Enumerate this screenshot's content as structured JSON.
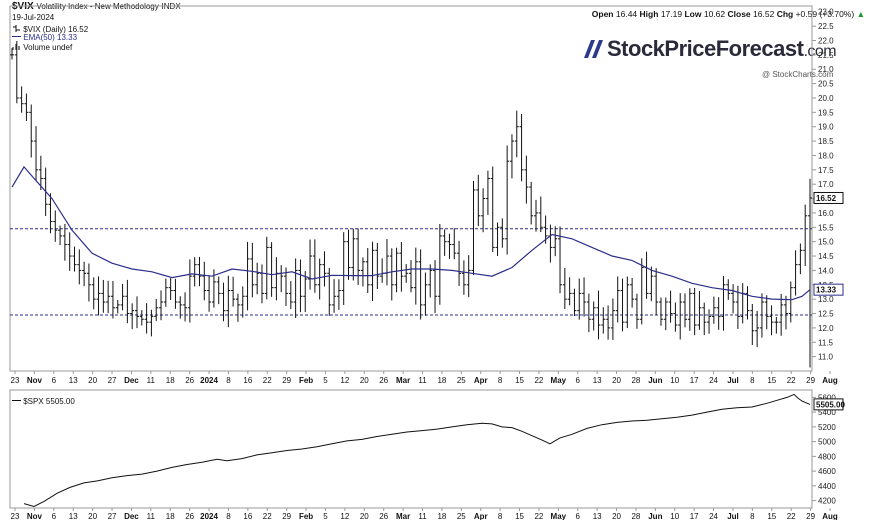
{
  "header": {
    "symbol": "$VIX",
    "name": "Volatility Index - New Methodology",
    "exchange": "INDX",
    "date": "19-Jul-2024",
    "ohlc": {
      "open_label": "Open",
      "open": "16.44",
      "high_label": "High",
      "high": "17.19",
      "low_label": "Low",
      "low": "10.62",
      "close_label": "Close",
      "close": "16.52",
      "chg_label": "Chg",
      "chg": "+0.59 (+3.70%)",
      "arrow": "▲"
    },
    "legend": [
      {
        "text": "$VIX (Daily) 16.52",
        "color": "#111111"
      },
      {
        "text": "EMA(50) 13.33",
        "color": "#2b2f8c"
      },
      {
        "text": "Volume undef",
        "color": "#111111"
      }
    ],
    "watermark": "@ StockCharts.com",
    "brand": "StockPriceForecast",
    "brand_domain": ".com"
  },
  "lower_panel": {
    "label": "$SPX 5505.00"
  },
  "chart_data": [
    {
      "type": "ohlc",
      "title": "$VIX (Daily) 16.52",
      "ylim": [
        10.5,
        23.2
      ],
      "yticks": [
        "11.0",
        "11.5",
        "12.0",
        "12.5",
        "13.0",
        "13.5",
        "14.0",
        "14.5",
        "15.0",
        "15.5",
        "16.0",
        "16.5",
        "17.0",
        "17.5",
        "18.0",
        "18.5",
        "19.0",
        "19.5",
        "20.0",
        "20.5",
        "21.0",
        "21.5",
        "22.0",
        "22.5",
        "23.0"
      ],
      "last_value_label": "16.52",
      "ema_label": "13.33",
      "horizontal_lines": [
        15.45,
        12.45
      ],
      "x_labels": [
        "23",
        "Nov",
        "6",
        "13",
        "20",
        "27",
        "Dec",
        "11",
        "18",
        "26",
        "2024",
        "8",
        "16",
        "22",
        "29",
        "Feb",
        "5",
        "12",
        "20",
        "26",
        "Mar",
        "11",
        "18",
        "25",
        "Apr",
        "8",
        "15",
        "22",
        "May",
        "6",
        "13",
        "20",
        "28",
        "Jun",
        "10",
        "17",
        "24",
        "Jul",
        "8",
        "15",
        "22",
        "29",
        "Aug"
      ],
      "series": [
        {
          "name": "$VIX (Daily)",
          "close": [
            21.5,
            20.0,
            19.8,
            19.5,
            18.5,
            17.5,
            17.2,
            16.3,
            15.7,
            15.4,
            15.2,
            14.9,
            14.5,
            14.2,
            14.0,
            13.9,
            13.5,
            13.0,
            13.2,
            12.9,
            13.1,
            12.7,
            12.8,
            13.1,
            12.5,
            12.6,
            12.4,
            12.3,
            12.2,
            12.4,
            12.7,
            12.9,
            13.4,
            13.3,
            12.9,
            12.8,
            12.7,
            13.8,
            14.2,
            13.8,
            13.3,
            12.9,
            13.6,
            13.2,
            12.6,
            13.3,
            13.0,
            12.8,
            13.1,
            14.4,
            13.5,
            13.9,
            13.2,
            14.8,
            13.4,
            13.9,
            13.8,
            13.2,
            12.9,
            14.0,
            13.1,
            13.7,
            14.5,
            13.5,
            14.2,
            13.9,
            12.8,
            13.1,
            13.3,
            15.0,
            14.1,
            15.1,
            14.0,
            14.3,
            13.5,
            14.7,
            13.8,
            13.9,
            14.5,
            13.5,
            14.6,
            13.8,
            13.9,
            13.4,
            14.3,
            12.8,
            13.5,
            14.0,
            13.1,
            15.2,
            15.0,
            14.9,
            14.6,
            13.9,
            13.5,
            14.0,
            16.8,
            15.9,
            16.5,
            17.2,
            14.8,
            15.5,
            15.1,
            17.8,
            18.5,
            19.0,
            17.5,
            16.9,
            15.9,
            16.0,
            15.5,
            15.2,
            14.8,
            15.1,
            13.5,
            13.0,
            13.2,
            12.6,
            13.2,
            12.9,
            12.3,
            12.7,
            12.1,
            12.3,
            12.0,
            12.6,
            13.3,
            12.2,
            13.5,
            13.0,
            12.3,
            14.1,
            13.2,
            13.8,
            12.9,
            12.3,
            12.9,
            12.5,
            12.1,
            12.9,
            12.3,
            13.2,
            12.1,
            12.7,
            12.2,
            12.4,
            12.7,
            12.4,
            13.5,
            13.2,
            12.9,
            12.4,
            13.2,
            12.6,
            11.9,
            12.0,
            12.9,
            12.4,
            12.2,
            12.2,
            12.8,
            12.5,
            13.4,
            14.2,
            14.7,
            15.9,
            16.52
          ]
        },
        {
          "name": "EMA(50)",
          "values": [
            [
              0,
              16.9
            ],
            [
              12,
              17.6
            ],
            [
              22,
              17.2
            ],
            [
              40,
              16.5
            ],
            [
              60,
              15.4
            ],
            [
              80,
              14.6
            ],
            [
              100,
              14.25
            ],
            [
              120,
              14.05
            ],
            [
              140,
              13.95
            ],
            [
              160,
              13.75
            ],
            [
              180,
              13.88
            ],
            [
              200,
              13.8
            ],
            [
              220,
              14.05
            ],
            [
              240,
              13.97
            ],
            [
              260,
              13.85
            ],
            [
              280,
              13.95
            ],
            [
              300,
              13.7
            ],
            [
              320,
              13.83
            ],
            [
              340,
              13.82
            ],
            [
              360,
              13.82
            ],
            [
              380,
              13.95
            ],
            [
              400,
              14.05
            ],
            [
              420,
              14.05
            ],
            [
              440,
              14.0
            ],
            [
              460,
              13.9
            ],
            [
              480,
              13.8
            ],
            [
              500,
              14.1
            ],
            [
              520,
              14.7
            ],
            [
              540,
              15.25
            ],
            [
              560,
              15.1
            ],
            [
              580,
              14.8
            ],
            [
              600,
              14.5
            ],
            [
              620,
              14.35
            ],
            [
              640,
              14.0
            ],
            [
              660,
              13.8
            ],
            [
              680,
              13.55
            ],
            [
              700,
              13.4
            ],
            [
              720,
              13.3
            ],
            [
              740,
              13.1
            ],
            [
              760,
              13.0
            ],
            [
              780,
              12.98
            ],
            [
              790,
              13.1
            ],
            [
              798,
              13.33
            ]
          ]
        }
      ]
    },
    {
      "type": "line",
      "title": "$SPX 5505.00",
      "ylim": [
        4100,
        5700
      ],
      "yticks": [
        "4200",
        "4400",
        "4600",
        "4800",
        "5000",
        "5200",
        "5400",
        "5600"
      ],
      "last_value_label": "5505.00",
      "series": [
        {
          "name": "$SPX",
          "values": [
            [
              12,
              4160
            ],
            [
              22,
              4120
            ],
            [
              32,
              4190
            ],
            [
              45,
              4300
            ],
            [
              58,
              4380
            ],
            [
              72,
              4440
            ],
            [
              86,
              4470
            ],
            [
              100,
              4510
            ],
            [
              115,
              4540
            ],
            [
              130,
              4560
            ],
            [
              145,
              4600
            ],
            [
              160,
              4650
            ],
            [
              175,
              4690
            ],
            [
              190,
              4720
            ],
            [
              205,
              4760
            ],
            [
              215,
              4740
            ],
            [
              230,
              4770
            ],
            [
              245,
              4820
            ],
            [
              260,
              4850
            ],
            [
              275,
              4880
            ],
            [
              290,
              4900
            ],
            [
              305,
              4930
            ],
            [
              320,
              4970
            ],
            [
              335,
              5010
            ],
            [
              350,
              5030
            ],
            [
              365,
              5070
            ],
            [
              380,
              5100
            ],
            [
              395,
              5130
            ],
            [
              410,
              5150
            ],
            [
              425,
              5170
            ],
            [
              440,
              5200
            ],
            [
              455,
              5230
            ],
            [
              470,
              5250
            ],
            [
              480,
              5240
            ],
            [
              490,
              5200
            ],
            [
              500,
              5190
            ],
            [
              510,
              5140
            ],
            [
              520,
              5080
            ],
            [
              530,
              5020
            ],
            [
              538,
              4970
            ],
            [
              548,
              5050
            ],
            [
              560,
              5100
            ],
            [
              575,
              5180
            ],
            [
              590,
              5230
            ],
            [
              605,
              5260
            ],
            [
              620,
              5280
            ],
            [
              635,
              5290
            ],
            [
              650,
              5310
            ],
            [
              665,
              5330
            ],
            [
              680,
              5360
            ],
            [
              695,
              5400
            ],
            [
              710,
              5440
            ],
            [
              725,
              5460
            ],
            [
              740,
              5470
            ],
            [
              755,
              5520
            ],
            [
              765,
              5560
            ],
            [
              775,
              5600
            ],
            [
              782,
              5640
            ],
            [
              786,
              5590
            ],
            [
              790,
              5550
            ],
            [
              798,
              5505
            ]
          ]
        }
      ]
    }
  ]
}
